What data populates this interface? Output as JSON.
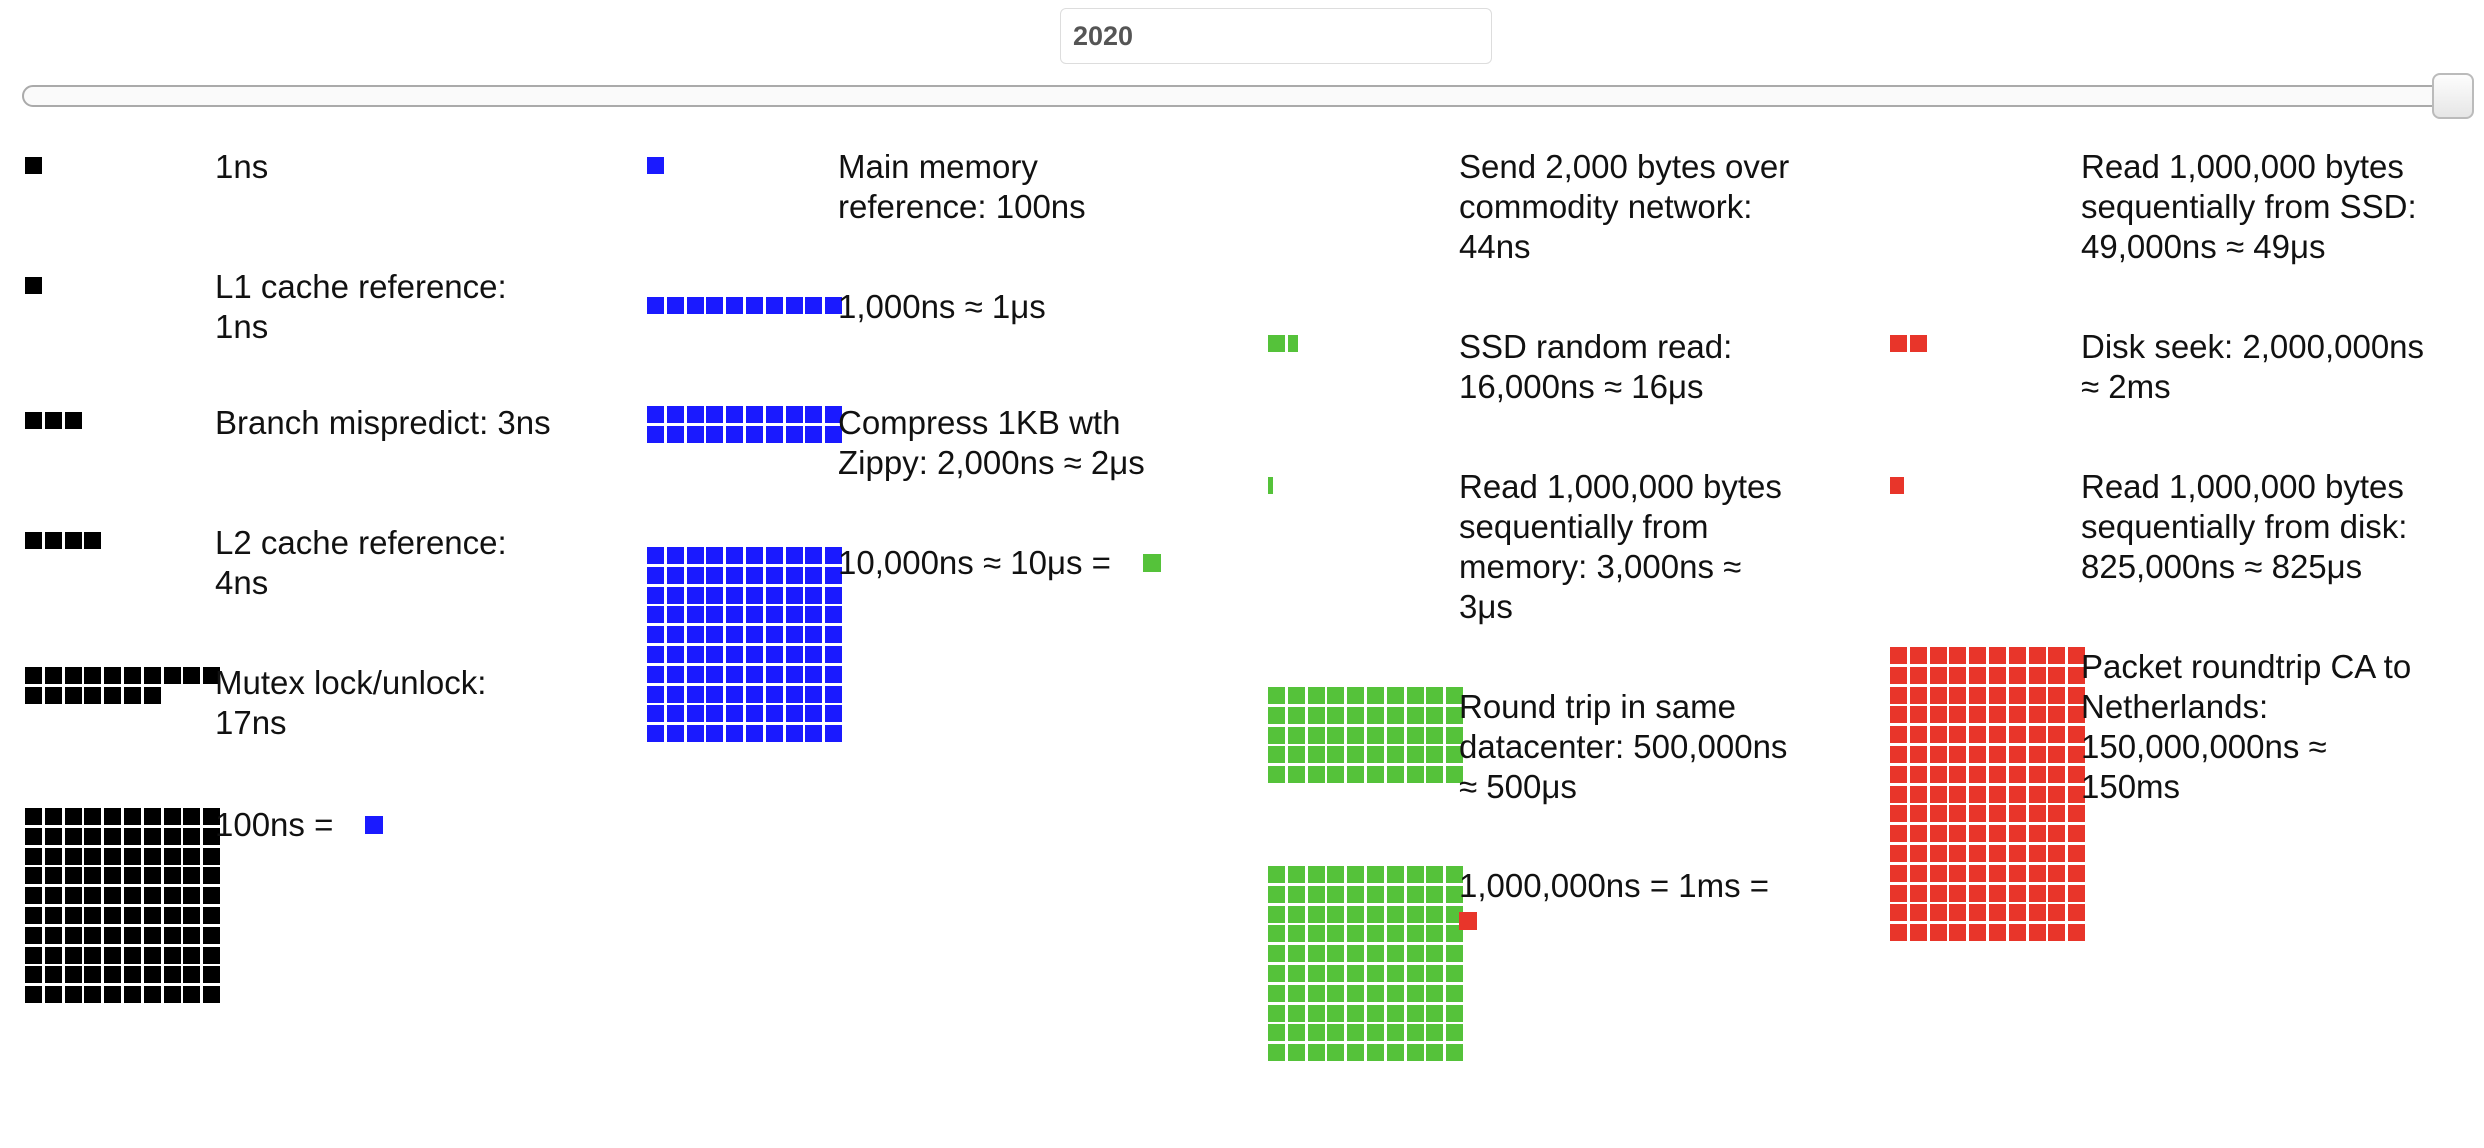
{
  "header": {
    "year": "2020"
  },
  "slider": {
    "value": 1
  },
  "colors": {
    "black": "#000000",
    "blue": "#1a1aff",
    "green": "#55c23a",
    "red": "#e8352a"
  },
  "icons": {
    "block": "square-block-icon"
  },
  "items": [
    {
      "label": "1ns",
      "blocks": 1,
      "color": "black"
    },
    {
      "label": "L1 cache reference:\n1ns",
      "blocks": 1,
      "color": "black"
    },
    {
      "label": "Branch mispredict: 3ns",
      "blocks": 3,
      "color": "black"
    },
    {
      "label": "L2 cache reference:\n4ns",
      "blocks": 4,
      "color": "black"
    },
    {
      "label": "Mutex lock/unlock:\n17ns",
      "blocks": 17,
      "color": "black"
    },
    {
      "label": "100ns =",
      "blocks": 100,
      "color": "black",
      "ref": "blue"
    },
    {
      "label": "Main memory\nreference: 100ns",
      "blocks": 1,
      "color": "blue"
    },
    {
      "label": "1,000ns ≈ 1μs",
      "blocks": 10,
      "color": "blue"
    },
    {
      "label": "Compress 1KB wth\nZippy: 2,000ns ≈ 2μs",
      "blocks": 20,
      "color": "blue"
    },
    {
      "label": "10,000ns ≈ 10μs =",
      "blocks": 100,
      "color": "blue",
      "ref": "green"
    },
    {
      "label": "Send 2,000 bytes over\ncommodity network:\n44ns",
      "blocks": 0,
      "color": "green"
    },
    {
      "label": "SSD random read:\n16,000ns ≈ 16μs",
      "blocks": 1.6,
      "color": "green"
    },
    {
      "label": "Read 1,000,000 bytes\nsequentially from\nmemory: 3,000ns ≈\n3μs",
      "blocks": 0.3,
      "color": "green"
    },
    {
      "label": "Round trip in same\ndatacenter: 500,000ns\n≈ 500μs",
      "blocks": 50,
      "color": "green"
    },
    {
      "label": "1,000,000ns = 1ms =",
      "blocks": 100,
      "color": "green",
      "ref": "red"
    },
    {
      "label": "Read 1,000,000 bytes\nsequentially from SSD:\n49,000ns ≈ 49μs",
      "blocks": 0,
      "color": "red"
    },
    {
      "label": "Disk seek: 2,000,000ns\n≈ 2ms",
      "blocks": 2,
      "color": "red"
    },
    {
      "label": "Read 1,000,000 bytes\nsequentially from disk:\n825,000ns ≈ 825μs",
      "blocks": 0.8,
      "color": "red"
    },
    {
      "label": "Packet roundtrip CA to\nNetherlands:\n150,000,000ns ≈\n150ms",
      "blocks": 150,
      "color": "red"
    }
  ]
}
